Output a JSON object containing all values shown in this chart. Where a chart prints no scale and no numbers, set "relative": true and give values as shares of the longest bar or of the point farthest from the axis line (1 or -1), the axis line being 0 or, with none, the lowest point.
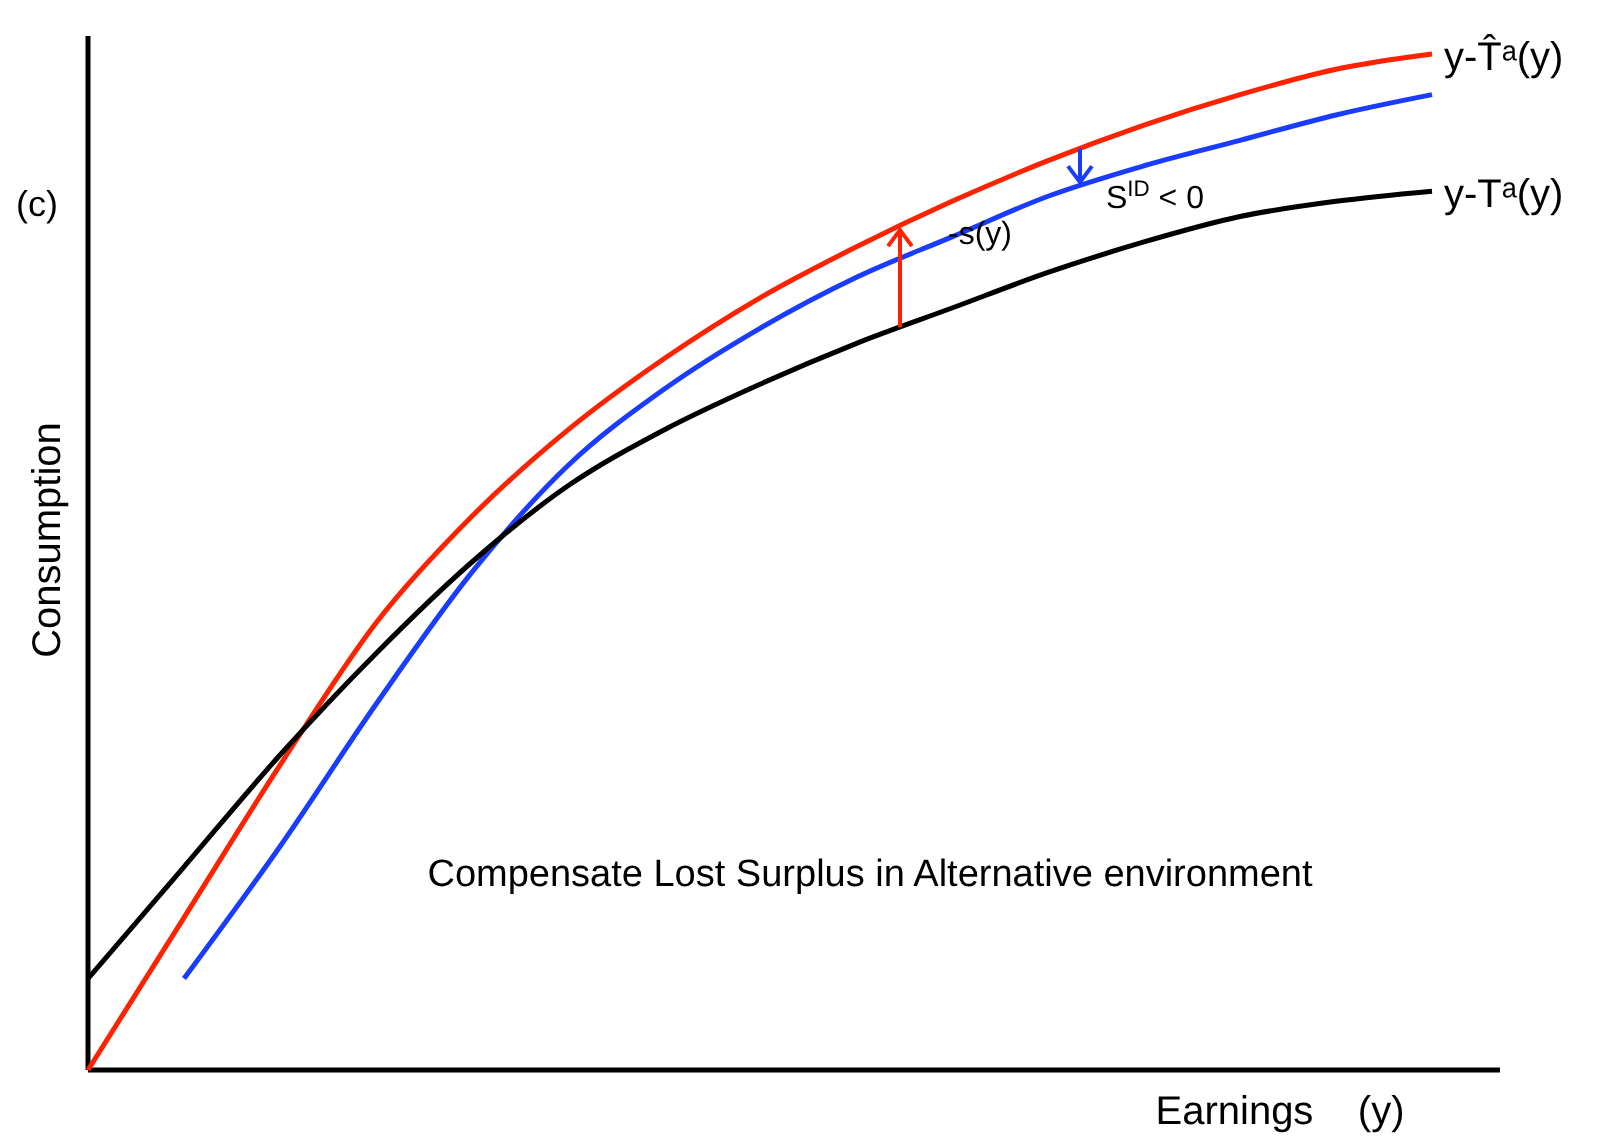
{
  "chart_data": {
    "type": "line",
    "relative": true,
    "xlabel": "Earnings    (y)",
    "ylabel": "Consumption",
    "categories": [
      null,
      null,
      null,
      null,
      null,
      null,
      null,
      null,
      null,
      null,
      null,
      null,
      null,
      null,
      null
    ],
    "series": [
      {
        "name": "y-T̂ᵃ(y)",
        "color": "#ff2200",
        "values": [
          0,
          0.15,
          0.3,
          0.44,
          0.545,
          0.63,
          0.7,
          0.76,
          0.81,
          0.855,
          0.895,
          0.93,
          0.96,
          0.985,
          1
        ]
      },
      {
        "color": "#1a3cff",
        "values": [
          null,
          0.09,
          0.22,
          0.36,
          0.49,
          0.595,
          0.67,
          0.73,
          0.78,
          0.82,
          0.86,
          0.89,
          0.915,
          0.94,
          0.96
        ]
      },
      {
        "name": "y-Tᵃ(y)",
        "color": "#000000",
        "values": [
          0.09,
          0.2,
          0.31,
          0.41,
          0.5,
          0.575,
          0.63,
          0.675,
          0.715,
          0.75,
          0.785,
          0.815,
          0.84,
          0.855,
          0.865
        ]
      }
    ],
    "annotations": [
      "(c)",
      "-s(y)",
      "S$^{ID}$ < 0",
      "Compensate Lost Surplus in Alternative environment"
    ],
    "marker": "none",
    "line_style": "solid"
  }
}
